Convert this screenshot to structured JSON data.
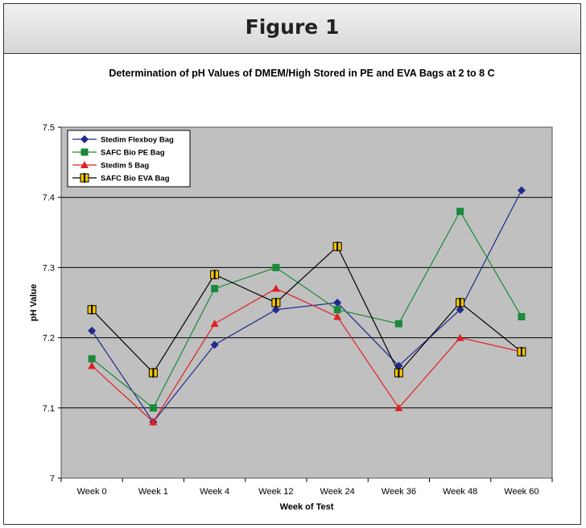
{
  "figure_label": "Figure 1",
  "chart_data": {
    "type": "line",
    "title": "Determination of pH Values of DMEM/High Stored in PE and EVA Bags at 2 to 8 C",
    "xlabel": "Week of Test",
    "ylabel": "pH Value",
    "ylim": [
      7,
      7.5
    ],
    "yticks": [
      "7",
      "7.1",
      "7.2",
      "7.3",
      "7.4",
      "7.5"
    ],
    "grid": true,
    "legend_position": "top-left",
    "categories": [
      "Week 0",
      "Week 1",
      "Week 4",
      "Week 12",
      "Week 24",
      "Week 36",
      "Week 48",
      "Week 60"
    ],
    "series": [
      {
        "name": "Stedim Flexboy Bag",
        "color": "#1f2a8a",
        "marker": "diamond",
        "values": [
          7.21,
          7.08,
          7.19,
          7.24,
          7.25,
          7.16,
          7.24,
          7.41
        ]
      },
      {
        "name": "SAFC Bio PE Bag",
        "color": "#1a8a3c",
        "marker": "square",
        "values": [
          7.17,
          7.1,
          7.27,
          7.3,
          7.24,
          7.22,
          7.38,
          7.23
        ]
      },
      {
        "name": "Stedim 5 Bag",
        "color": "#e02020",
        "marker": "triangle",
        "values": [
          7.16,
          7.08,
          7.22,
          7.27,
          7.23,
          7.1,
          7.2,
          7.18
        ]
      },
      {
        "name": "SAFC Bio EVA Bag",
        "color": "#000000",
        "marker": "bar-square",
        "marker_fill": "#f5c400",
        "values": [
          7.24,
          7.15,
          7.29,
          7.25,
          7.33,
          7.15,
          7.25,
          7.18
        ]
      }
    ]
  }
}
